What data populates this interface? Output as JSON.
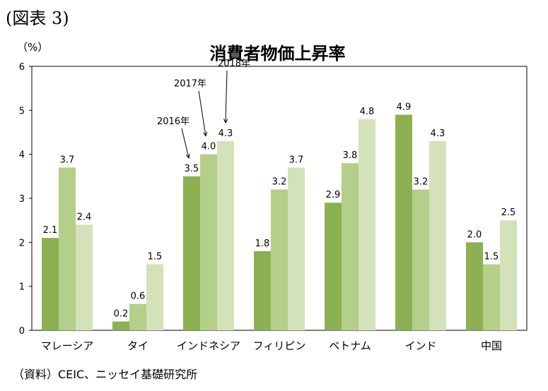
{
  "figure_label": "(図表 3)",
  "source": "（資料）CEIC、ニッセイ基礎研究所",
  "chart_data": {
    "type": "bar",
    "title": "消費者物価上昇率",
    "ylabel": "（%）",
    "xlabel": "",
    "ylim": [
      0,
      6
    ],
    "yticks": [
      0,
      1,
      2,
      3,
      4,
      5,
      6
    ],
    "grid": false,
    "legend": "none",
    "categories": [
      "マレーシア",
      "タイ",
      "インドネシア",
      "フィリピン",
      "ベトナム",
      "インド",
      "中国"
    ],
    "series": [
      {
        "name": "2016年",
        "color": "#8db052",
        "values": [
          2.1,
          0.2,
          3.5,
          1.8,
          2.9,
          4.9,
          2.0
        ]
      },
      {
        "name": "2017年",
        "color": "#b4cf89",
        "values": [
          3.7,
          0.6,
          4.0,
          3.2,
          3.8,
          3.2,
          1.5
        ]
      },
      {
        "name": "2018年",
        "color": "#d3e2b9",
        "values": [
          2.4,
          1.5,
          4.3,
          3.7,
          4.8,
          4.3,
          2.5
        ]
      }
    ],
    "data_labels": [
      [
        "2.1",
        "0.2",
        "3.5",
        "1.8",
        "2.9",
        "4.9",
        "2.0"
      ],
      [
        "3.7",
        "0.6",
        "4.0",
        "3.2",
        "3.8",
        "3.2",
        "1.5"
      ],
      [
        "2.4",
        "1.5",
        "4.3",
        "3.7",
        "4.8",
        "4.3",
        "2.5"
      ]
    ],
    "series_annotation_category": "インドネシア"
  }
}
